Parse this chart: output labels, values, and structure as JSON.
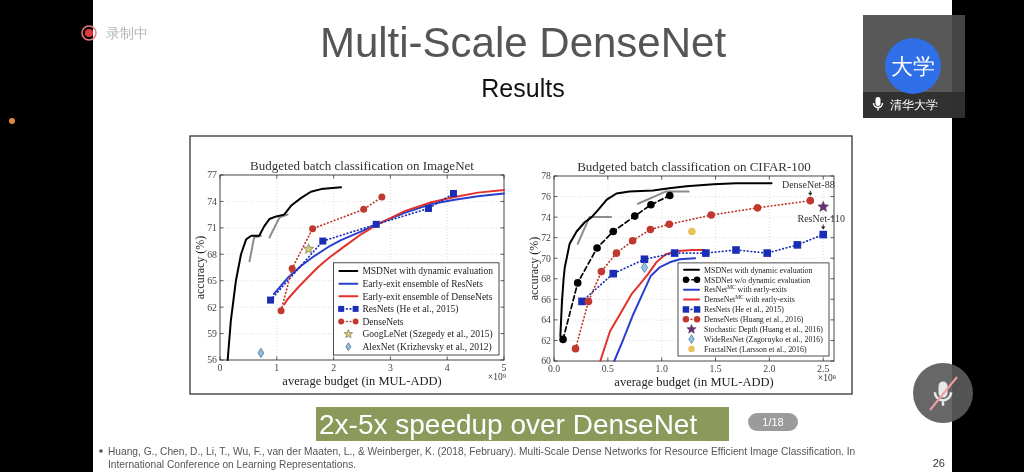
{
  "chart_data": [
    {
      "type": "other",
      "title": "Multi-Scale DenseNet",
      "subtitle": "Results",
      "annotations": [
        "2x-5x speedup over DenseNet",
        "Huang, G., Chen, D., Li, T., Wu, F., van der Maaten, L., & Weinberger, K. (2018, February). Multi-Scale Dense Networks for Resource Efficient Image Classification. In International Conference on Learning Representations.",
        "26",
        "1/18",
        "录制中",
        "大学",
        "清华大学"
      ]
    },
    {
      "type": "line",
      "title": "Budgeted batch classification on ImageNet",
      "xlabel": "average budget (in MUL-ADD)",
      "ylabel": "accuracy (%)",
      "xlim": [
        0,
        5
      ],
      "ylim": [
        56,
        77
      ],
      "xticks": [
        0,
        1,
        2,
        3,
        4,
        5
      ],
      "yticks": [
        56,
        59,
        62,
        65,
        68,
        71,
        74,
        77
      ],
      "grid": true,
      "legend": "bottom right",
      "annotations": [
        "×10⁹"
      ],
      "series": [
        {
          "type": "line",
          "color": "#8c8c8c",
          "x": [
            0.52,
            0.6,
            0.72
          ],
          "values": [
            67.2,
            69.9,
            70.1
          ]
        },
        {
          "type": "line",
          "color": "#8c8c8c",
          "x": [
            0.87,
            1.05,
            1.19
          ],
          "values": [
            69.9,
            72.2,
            72.5
          ]
        },
        {
          "type": "line",
          "name": "MSDNet with dynamic evaluation",
          "color": "#000000",
          "x": [
            0.135,
            0.19,
            0.28,
            0.37,
            0.46,
            0.55,
            0.69,
            0.78,
            0.87,
            0.99,
            1.13,
            1.25,
            1.43,
            1.6,
            1.78,
            2.13
          ],
          "values": [
            56.0,
            60.4,
            65.0,
            68.0,
            69.7,
            70.1,
            70.1,
            71.2,
            72.0,
            72.3,
            72.5,
            73.5,
            74.4,
            75.1,
            75.4,
            75.6
          ]
        },
        {
          "type": "line",
          "name": "Early-exit ensemble of ResNets",
          "color": "#2a3fcf",
          "x": [
            0.95,
            1.19,
            1.43,
            1.66,
            1.9,
            2.13,
            2.49,
            2.75,
            3.25,
            3.72,
            4.13,
            4.54,
            5.0
          ],
          "values": [
            63.5,
            65.3,
            66.7,
            67.8,
            68.8,
            69.6,
            70.6,
            71.4,
            72.7,
            73.7,
            74.2,
            74.6,
            74.9
          ]
        },
        {
          "type": "line",
          "name": "Early-exit ensemble of DenseNets",
          "color": "#e2322b",
          "x": [
            1.13,
            1.19,
            1.37,
            1.55,
            1.72,
            1.81,
            1.96,
            2.19,
            2.49,
            2.75,
            3.25,
            3.72,
            4.13,
            4.54,
            5.0
          ],
          "values": [
            62.3,
            62.9,
            64.2,
            65.4,
            66.5,
            67.0,
            67.8,
            68.9,
            70.3,
            71.3,
            72.9,
            73.9,
            74.5,
            75.0,
            75.3
          ]
        },
        {
          "type": "line",
          "name": "ResNets (He et al., 2015)",
          "color": "#1a2db5",
          "marker": "square",
          "line_style": "dotted",
          "x": [
            0.89,
            1.81,
            2.75,
            3.67,
            4.11
          ],
          "values": [
            62.8,
            69.5,
            71.4,
            73.2,
            74.9
          ]
        },
        {
          "type": "line",
          "name": "DenseNets",
          "color": "#c0392f",
          "marker": "circle",
          "line_style": "dotted",
          "x": [
            1.075,
            1.27,
            1.63,
            2.53,
            2.85
          ],
          "values": [
            61.6,
            66.4,
            70.9,
            73.1,
            74.5
          ]
        },
        {
          "type": "scatter",
          "name": "GoogLeNet (Szegedy et al., 2015)",
          "color": "#d9cd72",
          "marker": "star",
          "x": [
            1.56
          ],
          "values": [
            68.6
          ]
        },
        {
          "type": "scatter",
          "name": "AlexNet (Krizhevsky et al., 2012)",
          "color": "#8fbadb",
          "marker": "diamond",
          "x": [
            0.72
          ],
          "values": [
            56.8
          ]
        }
      ]
    },
    {
      "type": "line",
      "title": "Budgeted batch classification on CIFAR-100",
      "xlabel": "average budget (in MUL-ADD)",
      "ylabel": "accuracy (%)",
      "xlim": [
        0,
        2.6
      ],
      "ylim": [
        60,
        78
      ],
      "xticks": [
        {
          "value": 0,
          "label": "0.0"
        },
        0.5,
        {
          "value": 1,
          "label": "1.0"
        },
        1.5,
        {
          "value": 2,
          "label": "2.0"
        },
        2.5
      ],
      "yticks": [
        60,
        62,
        64,
        66,
        68,
        70,
        72,
        74,
        76,
        78
      ],
      "grid": true,
      "legend": "bottom right",
      "annotations": [
        "×10⁸",
        {
          "text": "DenseNet-88",
          "x": 2.38,
          "y": 75.6
        },
        {
          "text": "ResNet-110",
          "x": 2.5,
          "y": 72.3
        }
      ],
      "series": [
        {
          "type": "line",
          "color": "#8c8c8c",
          "x": [
            0.22,
            0.33,
            0.53
          ],
          "values": [
            71.4,
            74.0,
            74.0
          ]
        },
        {
          "type": "line",
          "color": "#8c8c8c",
          "x": [
            0.78,
            1.04,
            1.25
          ],
          "values": [
            75.3,
            76.5,
            76.5
          ]
        },
        {
          "type": "line",
          "name": "MSDNet with dynamic evaluation",
          "color": "#000000",
          "x": [
            0.059,
            0.074,
            0.09,
            0.1,
            0.145,
            0.21,
            0.285,
            0.35,
            0.41,
            0.49,
            0.58,
            0.7,
            0.92,
            1.07,
            1.23,
            1.48,
            1.69,
            2.02
          ],
          "values": [
            62.4,
            65.8,
            68.1,
            69.1,
            71.4,
            72.6,
            73.5,
            74.0,
            74.7,
            75.7,
            76.3,
            76.5,
            76.6,
            76.8,
            77.0,
            77.2,
            77.3,
            77.3
          ]
        },
        {
          "type": "line",
          "name": "MSDNet w/o dynamic evaluation",
          "color": "#000000",
          "marker": "circle",
          "line_style": "dashed",
          "x": [
            0.084,
            0.22,
            0.4,
            0.55,
            0.75,
            0.9,
            1.075
          ],
          "values": [
            62.1,
            67.6,
            71.0,
            72.6,
            74.1,
            75.2,
            76.1
          ]
        },
        {
          "type": "line",
          "name": "ResNet$^{MC}$ with early-exits",
          "color": "#2a3fcf",
          "x": [
            0.56,
            0.64,
            0.73,
            0.83,
            0.9,
            0.98,
            1.075,
            1.17,
            1.31
          ],
          "values": [
            60.0,
            62.0,
            64.4,
            66.7,
            68.3,
            69.1,
            69.6,
            69.9,
            70.0
          ]
        },
        {
          "type": "line",
          "name": "DenseNet$^{MC}$ with early-exits",
          "color": "#e2322b",
          "x": [
            0.43,
            0.52,
            0.61,
            0.72,
            0.8,
            0.87,
            0.95,
            1.04,
            1.15,
            1.29,
            1.4
          ],
          "values": [
            60.0,
            62.9,
            64.5,
            66.5,
            67.5,
            68.4,
            69.6,
            70.4,
            70.7,
            70.8,
            70.8
          ]
        },
        {
          "type": "line",
          "name": "ResNets (He et al., 2015)",
          "color": "#1a2db5",
          "marker": "square",
          "line_style": "dotted",
          "x": [
            0.26,
            0.55,
            0.84,
            1.12,
            1.41,
            1.69,
            1.98,
            2.26,
            2.5
          ],
          "values": [
            65.8,
            68.5,
            69.9,
            70.5,
            70.5,
            70.8,
            70.5,
            71.3,
            72.3
          ]
        },
        {
          "type": "line",
          "name": "DenseNets (Huang et al., 2016)",
          "color": "#c0392f",
          "marker": "circle",
          "line_style": "dotted",
          "x": [
            0.2,
            0.32,
            0.44,
            0.58,
            0.73,
            0.895,
            1.07,
            1.46,
            1.89,
            2.38
          ],
          "values": [
            61.2,
            65.8,
            68.7,
            70.5,
            71.7,
            72.8,
            73.3,
            74.2,
            74.9,
            75.6
          ]
        },
        {
          "type": "scatter",
          "name": "Stochastic Depth (Huang et al., 2016)",
          "color": "#6b2d7c",
          "marker": "star",
          "x": [
            2.5
          ],
          "values": [
            75.0
          ]
        },
        {
          "type": "scatter",
          "name": "WideResNet (Zagoruyko et al., 2016)",
          "color": "#8ec6e2",
          "marker": "diamond",
          "x": [
            0.84
          ],
          "values": [
            69.1
          ]
        },
        {
          "type": "scatter",
          "name": "FractalNet (Larsson et al., 2016)",
          "color": "#e8c35c",
          "marker": "circle",
          "x": [
            1.28
          ],
          "values": [
            72.6
          ]
        }
      ]
    }
  ]
}
